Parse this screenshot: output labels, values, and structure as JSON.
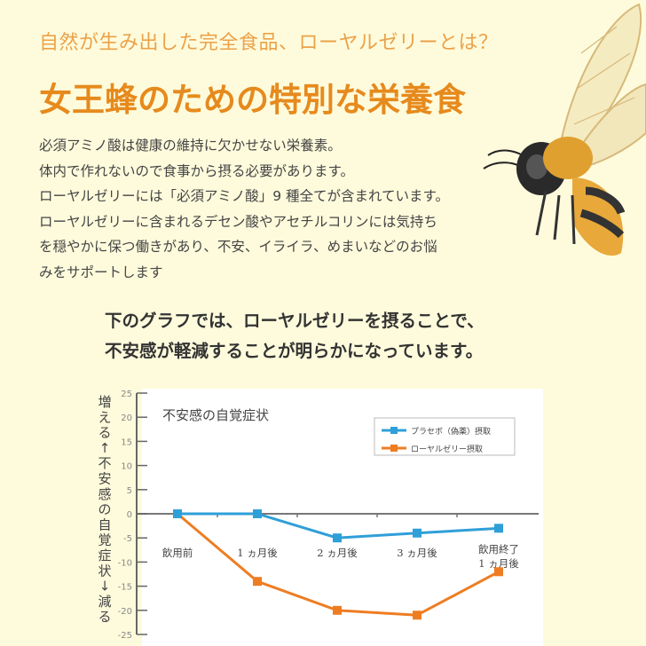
{
  "header": {
    "subtitle": "自然が生み出した完全食品、ローヤルゼリーとは？",
    "title": "女王蜂のための特別な栄養食"
  },
  "body_lines": [
    "必須アミノ酸は健康の維持に欠かせない栄養素。",
    "体内で作れないので食事から摂る必要があります。",
    "ローヤルゼリーには「必須アミノ酸」9 種全てが含まれています。",
    "ローヤルゼリーに含まれるデセン酸やアセチルコリンには気持ち",
    "を穏やかに保つ働きがあり、不安、イライラ、めまいなどのお悩",
    "みをサポートします"
  ],
  "lead_lines": [
    "下のグラフでは、ローヤルゼリーを摂ることで、",
    "不安感が軽減することが明らかになっています。"
  ],
  "chart_data": {
    "type": "line",
    "title": "不安感の自覚症状",
    "ylabel": "増える↑ 不安感の自覚症状 ↓減る",
    "ylim": [
      -25,
      25
    ],
    "yticks": [
      25,
      20,
      15,
      10,
      5,
      0,
      -5,
      -10,
      -15,
      -20,
      -25
    ],
    "categories": [
      "飲用前",
      "1 ヵ月後",
      "2 ヵ月後",
      "3 ヵ月後",
      "飲用終了\n1 ヵ月後"
    ],
    "legend_position": "top-right",
    "series": [
      {
        "name": "プラセボ（偽薬）摂取",
        "color": "#2f9fd8",
        "values": [
          0,
          0,
          -5,
          -4,
          -3
        ]
      },
      {
        "name": "ローヤルゼリー摂取",
        "color": "#ee7d22",
        "values": [
          0,
          -14,
          -20,
          -21,
          -12
        ]
      }
    ]
  }
}
